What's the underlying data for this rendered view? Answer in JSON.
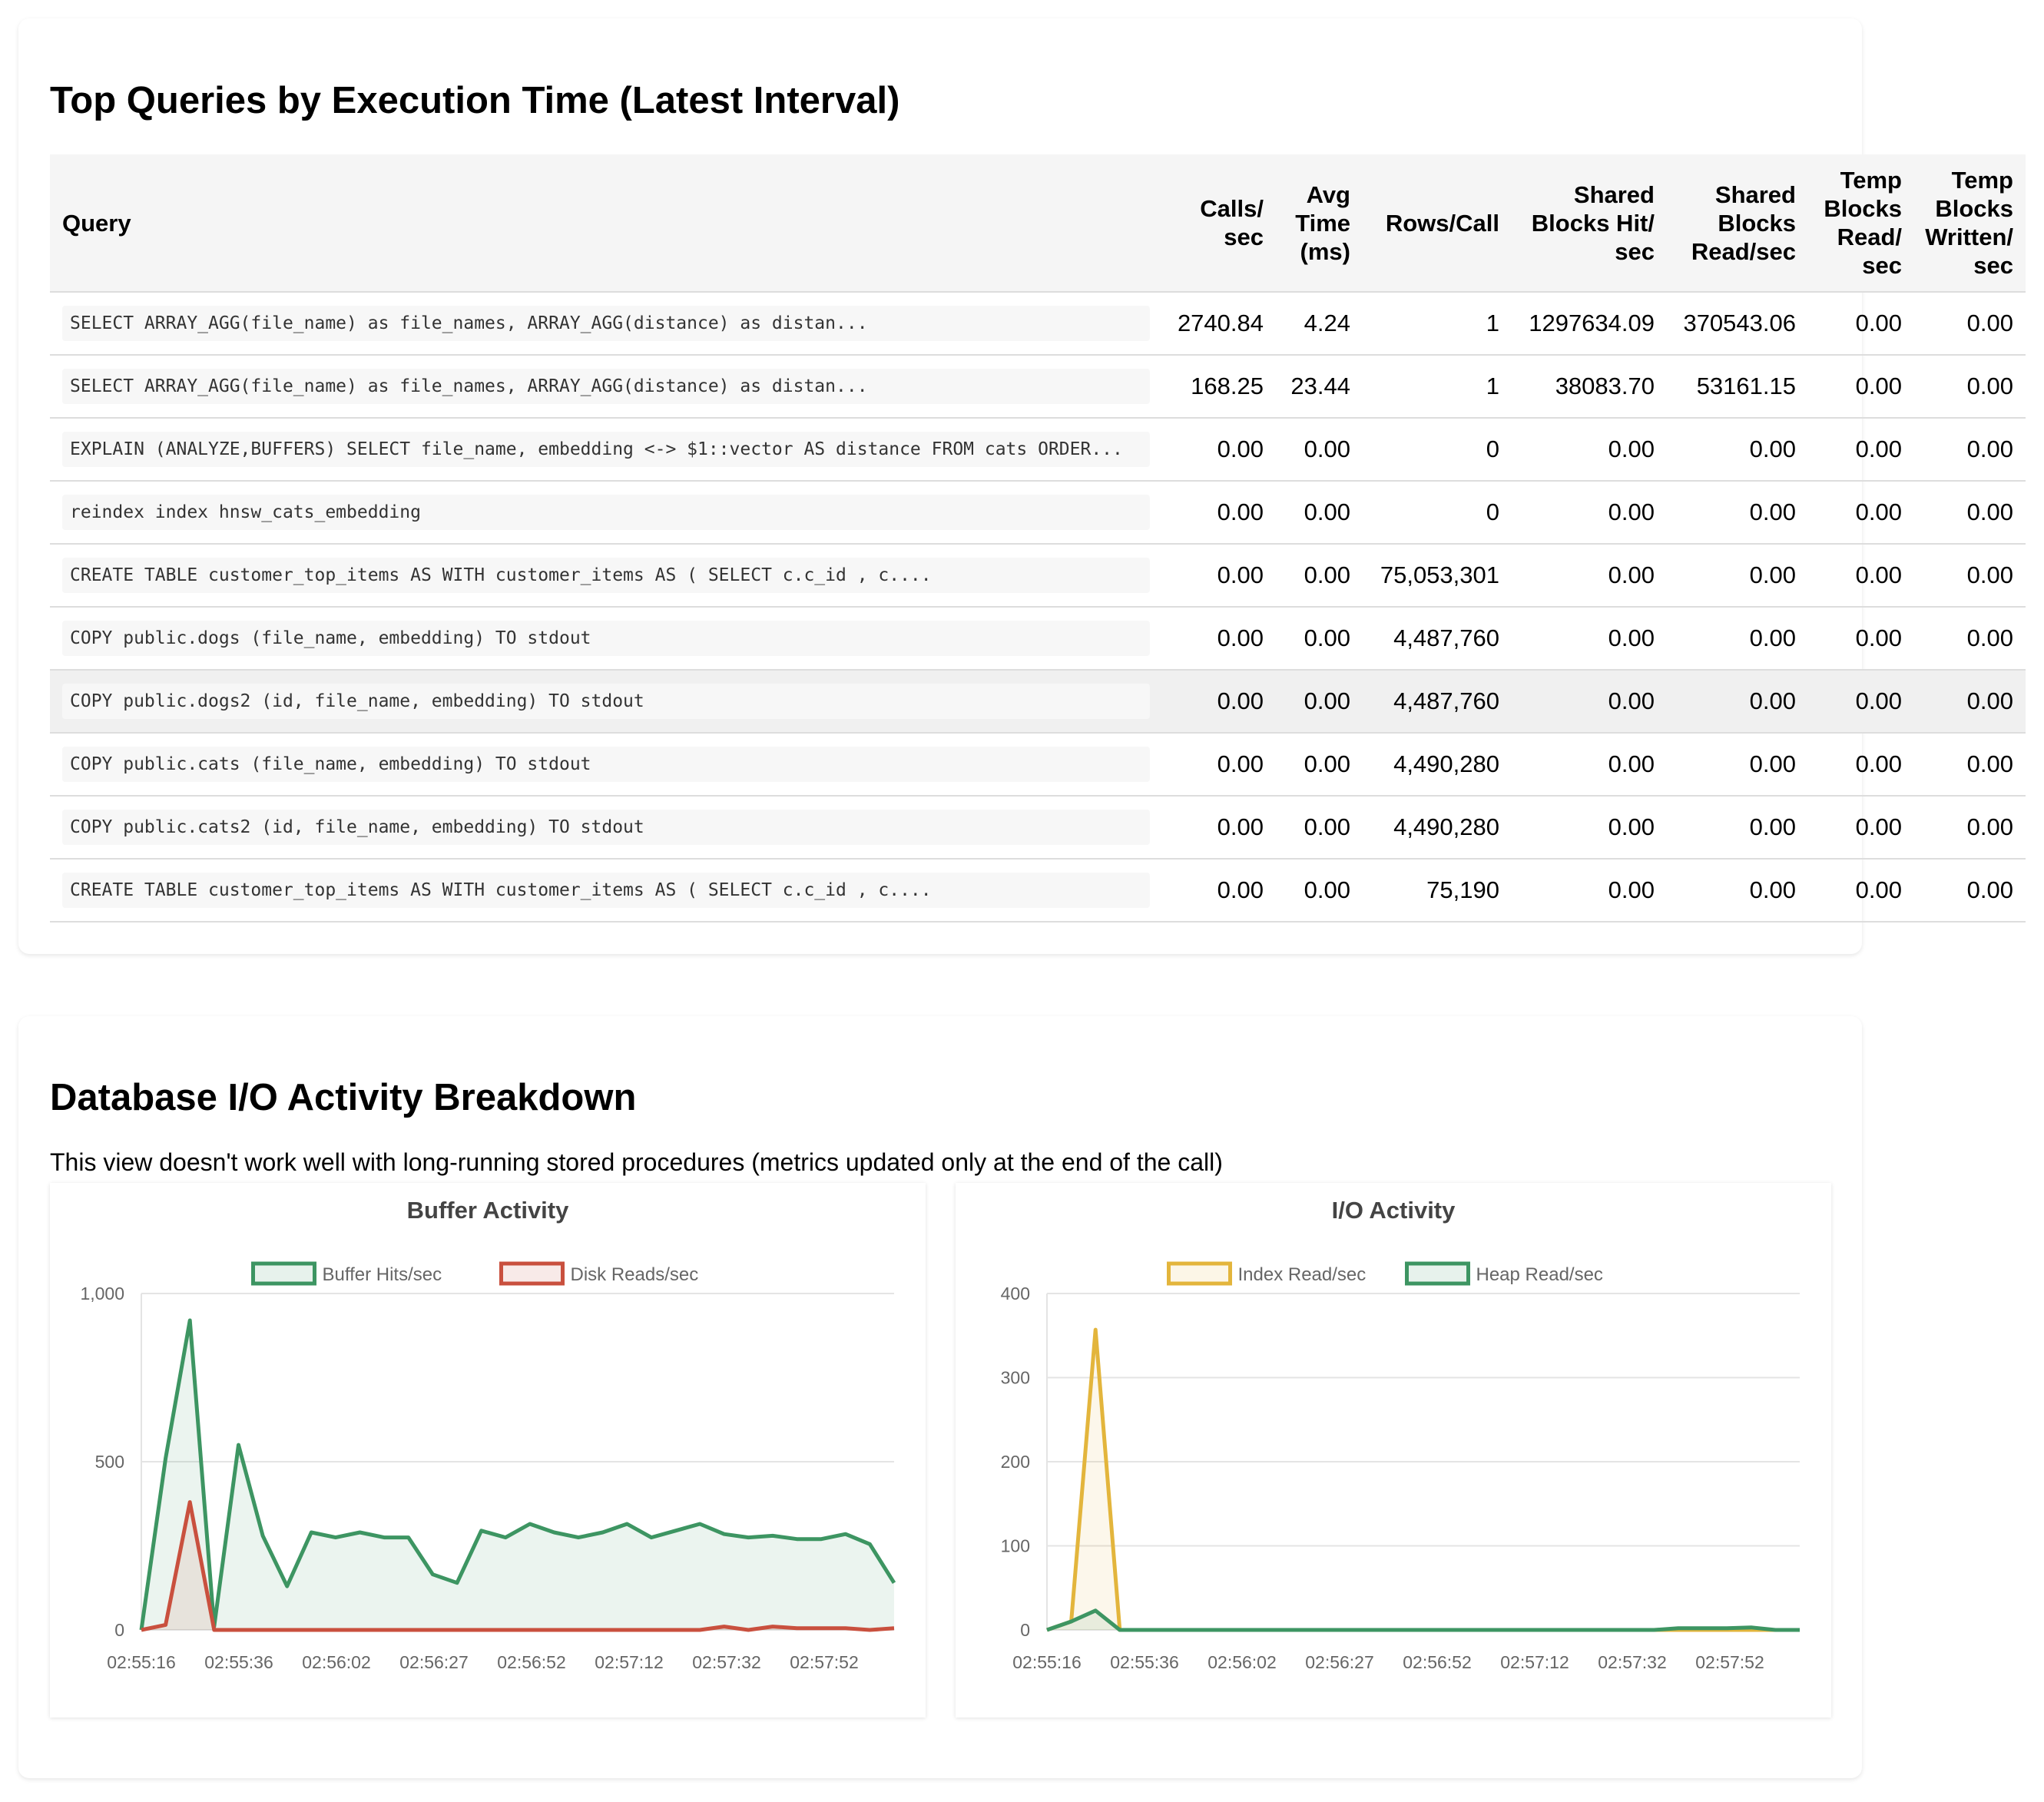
{
  "top_queries": {
    "title": "Top Queries by Execution Time (Latest Interval)",
    "columns": [
      "Query",
      "Calls/ sec",
      "Avg Time (ms)",
      "Rows/Call",
      "Shared Blocks Hit/ sec",
      "Shared Blocks Read/sec",
      "Temp Blocks Read/ sec",
      "Temp Blocks Written/ sec"
    ],
    "rows": [
      [
        "SELECT ARRAY_AGG(file_name) as file_names, ARRAY_AGG(distance) as distan...",
        "2740.84",
        "4.24",
        "1",
        "1297634.09",
        "370543.06",
        "0.00",
        "0.00"
      ],
      [
        "SELECT ARRAY_AGG(file_name) as file_names, ARRAY_AGG(distance) as distan...",
        "168.25",
        "23.44",
        "1",
        "38083.70",
        "53161.15",
        "0.00",
        "0.00"
      ],
      [
        "EXPLAIN (ANALYZE,BUFFERS) SELECT file_name, embedding <-> $1::vector AS distance FROM cats ORDER...",
        "0.00",
        "0.00",
        "0",
        "0.00",
        "0.00",
        "0.00",
        "0.00"
      ],
      [
        "reindex index hnsw_cats_embedding",
        "0.00",
        "0.00",
        "0",
        "0.00",
        "0.00",
        "0.00",
        "0.00"
      ],
      [
        "CREATE TABLE customer_top_items AS WITH customer_items AS ( SELECT c.c_id , c....",
        "0.00",
        "0.00",
        "75,053,301",
        "0.00",
        "0.00",
        "0.00",
        "0.00"
      ],
      [
        "COPY public.dogs (file_name, embedding) TO stdout",
        "0.00",
        "0.00",
        "4,487,760",
        "0.00",
        "0.00",
        "0.00",
        "0.00"
      ],
      [
        "COPY public.dogs2 (id, file_name, embedding) TO stdout",
        "0.00",
        "0.00",
        "4,487,760",
        "0.00",
        "0.00",
        "0.00",
        "0.00"
      ],
      [
        "COPY public.cats (file_name, embedding) TO stdout",
        "0.00",
        "0.00",
        "4,490,280",
        "0.00",
        "0.00",
        "0.00",
        "0.00"
      ],
      [
        "COPY public.cats2 (id, file_name, embedding) TO stdout",
        "0.00",
        "0.00",
        "4,490,280",
        "0.00",
        "0.00",
        "0.00",
        "0.00"
      ],
      [
        "CREATE TABLE customer_top_items AS WITH customer_items AS ( SELECT c.c_id , c....",
        "0.00",
        "0.00",
        "75,190",
        "0.00",
        "0.00",
        "0.00",
        "0.00"
      ]
    ],
    "highlighted_row": 6
  },
  "io_section": {
    "title": "Database I/O Activity Breakdown",
    "note": "This view doesn't work well with long-running stored procedures (metrics updated only at the end of the call)"
  },
  "chart_data": [
    {
      "type": "area",
      "title": "Buffer Activity",
      "x_tick_labels": [
        "02:55:16",
        "02:55:36",
        "02:56:02",
        "02:56:27",
        "02:56:52",
        "02:57:12",
        "02:57:32",
        "02:57:52"
      ],
      "ylim": [
        0,
        1000
      ],
      "y_ticks": [
        0,
        500,
        1000
      ],
      "y_tick_labels": [
        "0",
        "500",
        "1,000"
      ],
      "grid": true,
      "legend_position": "top",
      "series": [
        {
          "name": "Buffer Hits/sec",
          "color": "#3d9562",
          "values": [
            0,
            510,
            920,
            10,
            550,
            280,
            130,
            290,
            275,
            290,
            275,
            275,
            165,
            140,
            295,
            275,
            315,
            290,
            275,
            290,
            315,
            275,
            295,
            315,
            285,
            275,
            280,
            270,
            270,
            285,
            255,
            140
          ]
        },
        {
          "name": "Disk Reads/sec",
          "color": "#c9503e",
          "values": [
            0,
            15,
            380,
            0,
            0,
            0,
            0,
            0,
            0,
            0,
            0,
            0,
            0,
            0,
            0,
            0,
            0,
            0,
            0,
            0,
            0,
            0,
            0,
            0,
            10,
            0,
            10,
            5,
            5,
            5,
            0,
            5
          ]
        }
      ]
    },
    {
      "type": "area",
      "title": "I/O Activity",
      "x_tick_labels": [
        "02:55:16",
        "02:55:36",
        "02:56:02",
        "02:56:27",
        "02:56:52",
        "02:57:12",
        "02:57:32",
        "02:57:52"
      ],
      "ylim": [
        0,
        400
      ],
      "y_ticks": [
        0,
        100,
        200,
        300,
        400
      ],
      "y_tick_labels": [
        "0",
        "100",
        "200",
        "300",
        "400"
      ],
      "grid": true,
      "legend_position": "top",
      "series": [
        {
          "name": "Index Read/sec",
          "color": "#e3b53c",
          "values": [
            0,
            10,
            357,
            0,
            0,
            0,
            0,
            0,
            0,
            0,
            0,
            0,
            0,
            0,
            0,
            0,
            0,
            0,
            0,
            0,
            0,
            0,
            0,
            0,
            0,
            0,
            0,
            0,
            0,
            0,
            0,
            0
          ]
        },
        {
          "name": "Heap Read/sec",
          "color": "#3d9562",
          "values": [
            0,
            10,
            23,
            0,
            0,
            0,
            0,
            0,
            0,
            0,
            0,
            0,
            0,
            0,
            0,
            0,
            0,
            0,
            0,
            0,
            0,
            0,
            0,
            0,
            0,
            0,
            2,
            2,
            2,
            3,
            0,
            0
          ]
        }
      ]
    }
  ]
}
